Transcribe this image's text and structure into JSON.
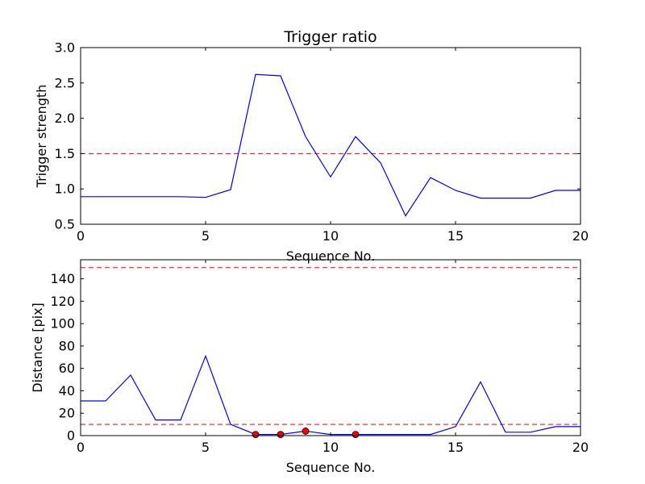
{
  "chart_data": [
    {
      "type": "line",
      "title": "Trigger ratio",
      "xlabel": "Sequence No.",
      "ylabel": "Trigger strength",
      "xlim": [
        0,
        20
      ],
      "ylim": [
        0.5,
        3.0
      ],
      "xticks": [
        0,
        5,
        10,
        15,
        20
      ],
      "xtick_labels": [
        "0",
        "5",
        "10",
        "15",
        "20"
      ],
      "yticks": [
        0.5,
        1.0,
        1.5,
        2.0,
        2.5,
        3.0
      ],
      "ytick_labels": [
        "0.5",
        "1.0",
        "1.5",
        "2.0",
        "2.5",
        "3.0"
      ],
      "grid": false,
      "series": [
        {
          "color": "#0000ff",
          "x": [
            0,
            1,
            2,
            3,
            4,
            5,
            6,
            7,
            8,
            9,
            10,
            11,
            12,
            13,
            14,
            15,
            16,
            17,
            18,
            19,
            20
          ],
          "y": [
            0.89,
            0.89,
            0.89,
            0.89,
            0.89,
            0.88,
            0.99,
            2.62,
            2.6,
            1.74,
            1.17,
            1.74,
            1.37,
            0.62,
            1.16,
            0.98,
            0.87,
            0.87,
            0.87,
            0.98,
            0.98
          ]
        }
      ],
      "hlines": [
        {
          "y": 1.5,
          "color": "#ff0000",
          "style": "dashed"
        }
      ]
    },
    {
      "type": "line",
      "title": "",
      "xlabel": "Sequence No.",
      "ylabel": "Distance [pix]",
      "xlim": [
        0,
        20
      ],
      "ylim": [
        0,
        157
      ],
      "xticks": [
        0,
        5,
        10,
        15,
        20
      ],
      "xtick_labels": [
        "0",
        "5",
        "10",
        "15",
        "20"
      ],
      "yticks": [
        0,
        20,
        40,
        60,
        80,
        100,
        120,
        140
      ],
      "ytick_labels": [
        "0",
        "20",
        "40",
        "60",
        "80",
        "100",
        "120",
        "140"
      ],
      "grid": false,
      "series": [
        {
          "color": "#0000ff",
          "x": [
            0,
            1,
            2,
            3,
            4,
            5,
            6,
            7,
            8,
            9,
            10,
            11,
            12,
            13,
            14,
            15,
            16,
            17,
            18,
            19,
            20
          ],
          "y": [
            31,
            31,
            54,
            14,
            14,
            71,
            10,
            1,
            1,
            4,
            1,
            1,
            1,
            1,
            1,
            8,
            48,
            3,
            3,
            8,
            8
          ]
        }
      ],
      "markers": {
        "color": "#ff0000",
        "x": [
          7,
          8,
          9,
          11
        ],
        "y": [
          1,
          1,
          4,
          1
        ]
      },
      "hlines": [
        {
          "y": 150,
          "color": "#ff0000",
          "style": "dashed"
        },
        {
          "y": 10,
          "color": "#ff0000",
          "style": "dashed"
        }
      ]
    }
  ]
}
